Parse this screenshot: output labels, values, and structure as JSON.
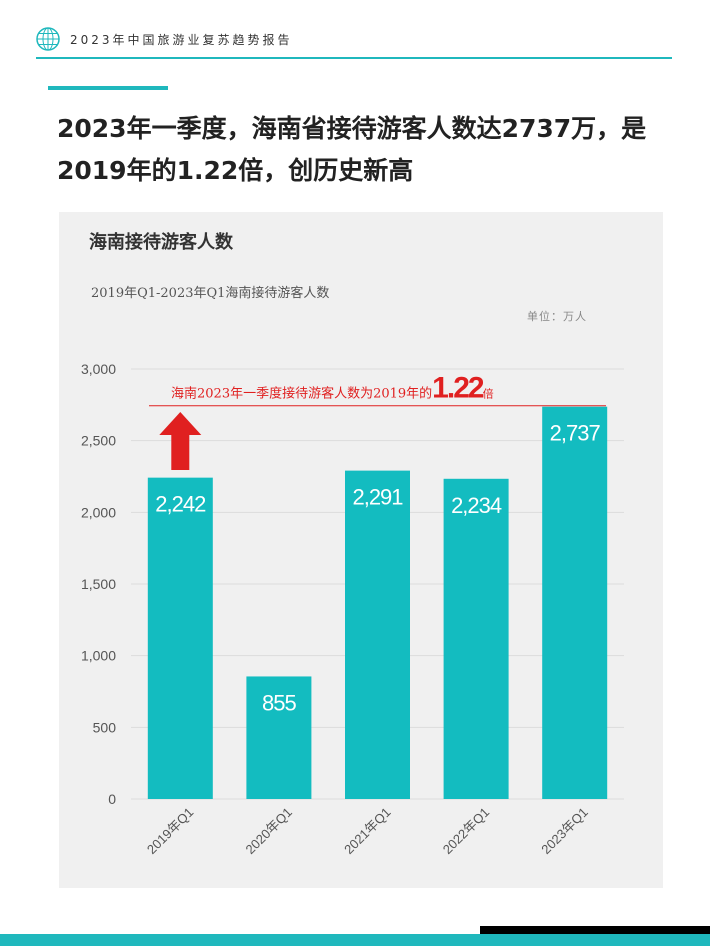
{
  "header": {
    "text": "2023年中国旅游业复苏趋势报告"
  },
  "headline": "2023年一季度，海南省接待游客人数达2737万，是2019年的1.22倍，创历史新高",
  "colors": {
    "accent": "#1fb8bd",
    "bar": "#13bcc0",
    "annotation": "#e02020",
    "panel": "#f0f0f0"
  },
  "chart": {
    "title": "海南接待游客人数",
    "subtitle": "2019年Q1-2023年Q1海南接待游客人数",
    "unit": "单位：万人"
  },
  "chart_data": {
    "type": "bar",
    "categories": [
      "2019年Q1",
      "2020年Q1",
      "2021年Q1",
      "2022年Q1",
      "2023年Q1"
    ],
    "values": [
      2242,
      855,
      2291,
      2234,
      2737
    ],
    "value_labels": [
      "2,242",
      "855",
      "2,291",
      "2,234",
      "2,737"
    ],
    "yticks": [
      0,
      500,
      1000,
      1500,
      2000,
      2500,
      3000
    ],
    "ytick_labels": [
      "0",
      "500",
      "1,000",
      "1,500",
      "2,000",
      "2,500",
      "3,000"
    ],
    "ylim": [
      0,
      3000
    ],
    "reference_line": 2737,
    "annotation": {
      "prefix": "海南2023年一季度接待游客人数为2019年的",
      "highlight": "1.22",
      "suffix": "倍"
    },
    "arrow": "up"
  }
}
